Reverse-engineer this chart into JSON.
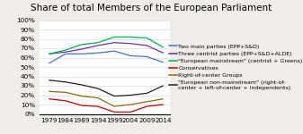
{
  "title": "Share of total Members of the European Parliament",
  "years": [
    1979,
    1984,
    1989,
    1994,
    1999,
    2004,
    2009,
    2014
  ],
  "series": [
    {
      "label": "Two main parties (EPP+S&D)",
      "color": "#4472C4",
      "values": [
        54,
        64,
        64,
        65,
        67,
        62,
        61,
        55
      ]
    },
    {
      "label": "Three centrist parties (EPP+S&D+ALDE)",
      "color": "#7030A0",
      "values": [
        64,
        66,
        69,
        73,
        76,
        75,
        73,
        65
      ]
    },
    {
      "label": "\"European mainstream\" (centrist + Greens)",
      "color": "#00B050",
      "values": [
        64,
        68,
        74,
        76,
        82,
        82,
        81,
        71
      ]
    },
    {
      "label": "Conservatives",
      "color": "#C00000",
      "values": [
        16,
        14,
        9,
        8,
        2,
        2,
        8,
        10
      ]
    },
    {
      "label": "Right-of-center Groups",
      "color": "#8B6914",
      "values": [
        24,
        23,
        19,
        17,
        8,
        10,
        13,
        16
      ]
    },
    {
      "label": "\"European non-mainstream\" (right-of-\ncenter + left-of-center + independents)",
      "color": "#1F1F1F",
      "values": [
        36,
        34,
        31,
        27,
        19,
        20,
        22,
        30
      ]
    }
  ],
  "ylim": [
    0,
    100
  ],
  "yticks": [
    0,
    10,
    20,
    30,
    40,
    50,
    60,
    70,
    80,
    90,
    100
  ],
  "ytick_labels": [
    "0%",
    "10%",
    "20%",
    "30%",
    "40%",
    "50%",
    "60%",
    "70%",
    "80%",
    "90%",
    "100%"
  ],
  "background_color": "#f0ede8",
  "plot_bg_color": "#ffffff",
  "title_fontsize": 7.5,
  "tick_fontsize": 5.2,
  "legend_fontsize": 4.5
}
